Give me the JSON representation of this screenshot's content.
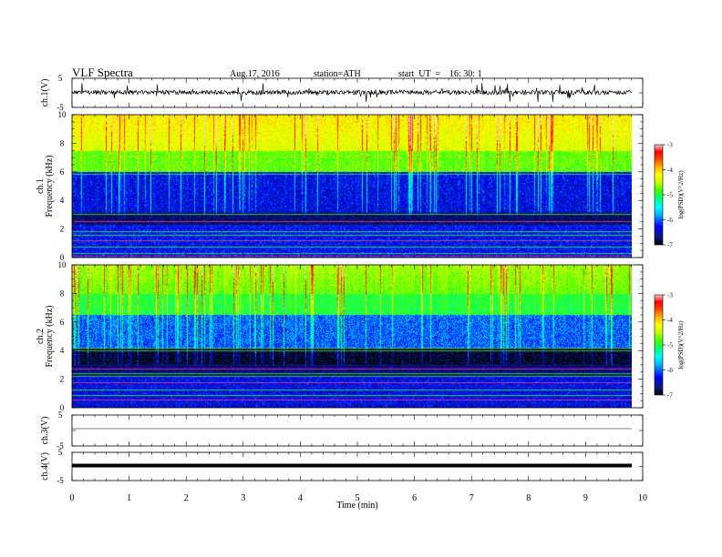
{
  "header": {
    "title": "VLF Spectra",
    "date": "Aug.17, 2016",
    "station": "station=ATH",
    "start": "start  UT  =    16: 30: 1"
  },
  "chart_data": [
    {
      "type": "line",
      "name": "ch1-waveform",
      "ylabel": "ch.1(V)",
      "ylim": [
        -5,
        5
      ],
      "yticks": [
        "5",
        "-5"
      ],
      "xlim": [
        0,
        10
      ],
      "values_shown": "noisy waveform around 0 V with spikes, data to ~9.8 min"
    },
    {
      "type": "heatmap",
      "name": "ch1-spectrogram",
      "ylabel_top": "ch.1",
      "ylabel": "Frequency  (kHz)",
      "ylim": [
        0,
        10
      ],
      "yticks": [
        "0",
        "2",
        "4",
        "6",
        "8",
        "10"
      ],
      "xlim": [
        0,
        10
      ],
      "colorbar": {
        "label": "log(PSD)(V^2/Hz)",
        "range": [
          -7,
          -3
        ],
        "ticks": [
          "-3",
          "-4",
          "-5",
          "-6",
          "-7"
        ]
      }
    },
    {
      "type": "heatmap",
      "name": "ch2-spectrogram",
      "ylabel_top": "ch.2",
      "ylabel": "Frequency  (kHz)",
      "ylim": [
        0,
        10
      ],
      "yticks": [
        "0",
        "2",
        "4",
        "6",
        "8",
        "10"
      ],
      "xlim": [
        0,
        10
      ],
      "colorbar": {
        "label": "log(PSD)(V^2/Hz)",
        "range": [
          -7,
          -3
        ],
        "ticks": [
          "-3",
          "-4",
          "-5",
          "-6",
          "-7"
        ]
      }
    },
    {
      "type": "line",
      "name": "ch3-waveform",
      "ylabel": "ch.3(V)",
      "ylim": [
        -5,
        5
      ],
      "yticks": [
        "5",
        "-5"
      ],
      "xlim": [
        0,
        10
      ],
      "values_shown": "flat line near 0 V"
    },
    {
      "type": "line",
      "name": "ch4-waveform",
      "ylabel": "ch.4(V)",
      "ylim": [
        -5,
        5
      ],
      "yticks": [
        "5",
        "-5"
      ],
      "xlim": [
        0,
        10
      ],
      "values_shown": "thick flat line near 0 V"
    }
  ],
  "xaxis": {
    "label": "Time  (min)",
    "ticks": [
      "0",
      "1",
      "2",
      "3",
      "4",
      "5",
      "6",
      "7",
      "8",
      "9",
      "10"
    ]
  },
  "colors": {
    "colormap": [
      "#000000",
      "#0a1a7a",
      "#0000ff",
      "#00b0ff",
      "#00ffff",
      "#00ff80",
      "#40ff00",
      "#c0ff00",
      "#ffff00",
      "#ffb000",
      "#ff4000",
      "#ff0000",
      "#ffd0d0"
    ]
  }
}
